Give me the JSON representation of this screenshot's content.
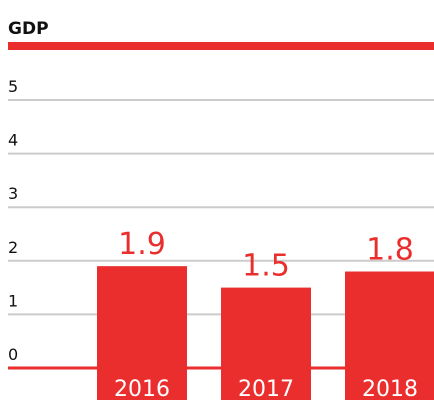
{
  "chart_data": {
    "type": "bar",
    "title": "GDP",
    "categories": [
      "2016",
      "2017",
      "2018"
    ],
    "values": [
      1.9,
      1.5,
      1.8
    ],
    "color": "#ea2e2e",
    "ylim": [
      0,
      5
    ],
    "yticks": [
      0,
      1,
      2,
      3,
      4,
      5
    ],
    "grid": true
  }
}
